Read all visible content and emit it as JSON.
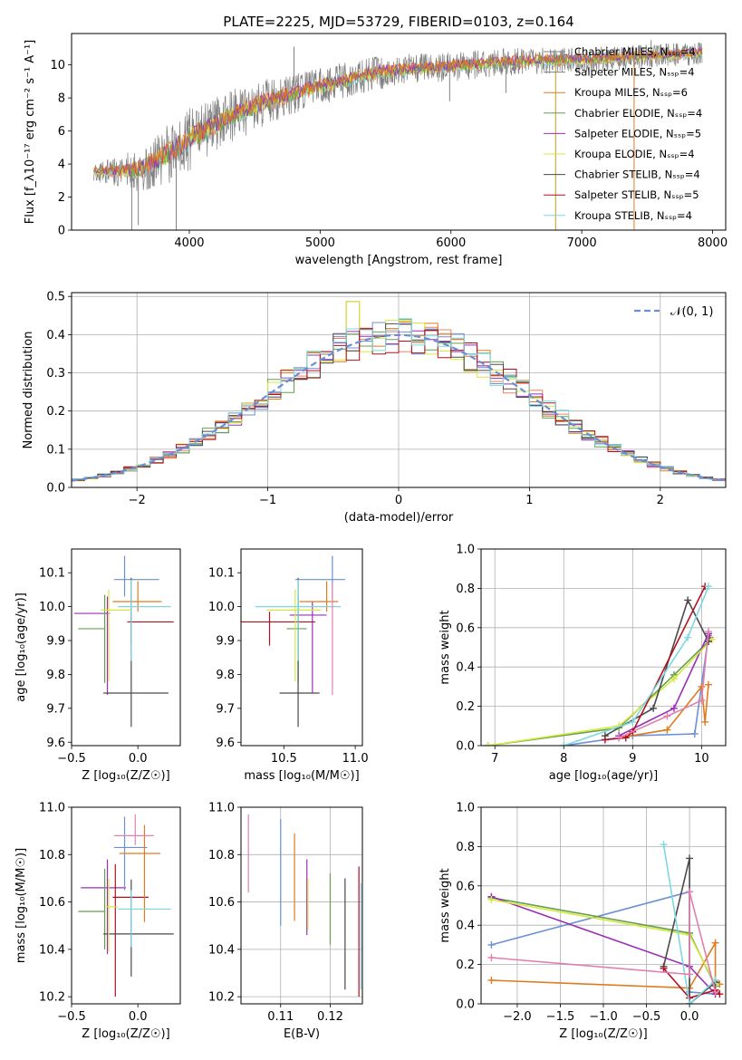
{
  "colors": [
    "#6b8fd6",
    "#f08060",
    "#e07b20",
    "#63a04f",
    "#9b30b5",
    "#d7e83c",
    "#4a4a4a",
    "#b01020",
    "#7fd7e0",
    "#e080b0",
    "#808080"
  ],
  "figure_title": "PLATE=2225, MJD=53729, FIBERID=0103, z=0.164",
  "chart_data": [
    {
      "id": "spectrum",
      "type": "line",
      "xlabel": "wavelength [Angstrom, rest frame]",
      "ylabel": "Flux [f_λ10⁻¹⁷ erg cm⁻² s⁻¹ A⁻¹]",
      "xlim": [
        3100,
        8100
      ],
      "ylim": [
        0,
        11.9
      ],
      "xticks": [
        4000,
        5000,
        6000,
        7000,
        8000
      ],
      "yticks": [
        0,
        2,
        4,
        6,
        8,
        10
      ],
      "x_range_data": [
        3270,
        7920
      ],
      "data_color": "#808080",
      "legend_position": "upper right",
      "legend": [
        "Chabrier MILES, N_SSP=4",
        "Salpeter MILES, N_SSP=4",
        "Kroupa MILES, N_SSP=6",
        "Chabrier ELODIE, N_SSP=4",
        "Salpeter ELODIE, N_SSP=5",
        "Kroupa ELODIE, N_SSP=4",
        "Chabrier STELIB, N_SSP=4",
        "Salpeter STELIB, N_SSP=5",
        "Kroupa STELIB, N_SSP=4"
      ],
      "legend_colors": [
        "#808080",
        "#808080",
        "#e07b20",
        "#63a04f",
        "#9b30b5",
        "#d7e83c",
        "#4a4a4a",
        "#b01020",
        "#7fd7e0"
      ],
      "continuum_points": [
        [
          3270,
          3.5
        ],
        [
          3600,
          3.6
        ],
        [
          3800,
          4.4
        ],
        [
          4000,
          5.5
        ],
        [
          4300,
          6.8
        ],
        [
          4600,
          7.8
        ],
        [
          5000,
          8.7
        ],
        [
          5500,
          9.6
        ],
        [
          6000,
          9.9
        ],
        [
          6500,
          10.2
        ],
        [
          7000,
          10.3
        ],
        [
          7500,
          10.5
        ],
        [
          7920,
          10.7
        ]
      ],
      "noise_amplitude": [
        [
          3270,
          0.5
        ],
        [
          3900,
          2.0
        ],
        [
          4800,
          1.2
        ],
        [
          6000,
          0.9
        ],
        [
          7920,
          0.7
        ]
      ],
      "spikes": [
        [
          3560,
          0
        ],
        [
          3610,
          0.3
        ],
        [
          3900,
          0
        ],
        [
          4800,
          11.1
        ],
        [
          5400,
          10.2
        ],
        [
          5990,
          7.8
        ],
        [
          6420,
          8.3
        ],
        [
          6800,
          0
        ],
        [
          7400,
          0
        ],
        [
          7530,
          11.5
        ]
      ]
    },
    {
      "id": "residuals",
      "type": "histogram",
      "xlabel": "(data-model)/error",
      "ylabel": "Normed distribution",
      "xlim": [
        -2.5,
        2.5
      ],
      "ylim": [
        0,
        0.51
      ],
      "xticks": [
        -2,
        -1,
        0,
        1,
        2
      ],
      "yticks": [
        0.0,
        0.1,
        0.2,
        0.3,
        0.4,
        0.5
      ],
      "grid": true,
      "bin_width": 0.1,
      "legend": [
        "𝒩(0, 1)"
      ],
      "legend_position": "upper right",
      "reference_curve": "normal(0,1)"
    },
    {
      "id": "age_vs_Z",
      "type": "errorbar",
      "xlabel": "Z [log₁₀(Z/Z☉)]",
      "ylabel": "age  [log₁₀(age/yr)]",
      "xlim": [
        -0.5,
        0.32
      ],
      "ylim": [
        9.59,
        10.17
      ],
      "xticks": [
        -0.5,
        0.0
      ],
      "yticks": [
        9.6,
        9.7,
        9.8,
        9.9,
        10.0,
        10.1
      ],
      "points": [
        {
          "x": -0.23,
          "y": 9.98,
          "xerr": [
            0.25,
            0.02
          ],
          "yerr": [
            0.24,
            0.05
          ],
          "color": "#9b30b5"
        },
        {
          "x": -0.05,
          "y": 9.955,
          "xerr": [
            0.03,
            0.32
          ],
          "yerr": [
            0.07,
            0.03
          ],
          "color": "#b01020"
        },
        {
          "x": -0.1,
          "y": 10.08,
          "xerr": [
            0.08,
            0.26
          ],
          "yerr": [
            0.05,
            0.07
          ],
          "color": "#6b8fd6"
        },
        {
          "x": 0.0,
          "y": 10.015,
          "xerr": [
            0.19,
            0.18
          ],
          "yerr": [
            0.03,
            0.06
          ],
          "color": "#e07b20"
        },
        {
          "x": -0.25,
          "y": 9.935,
          "xerr": [
            0.2,
            0.0
          ],
          "yerr": [
            0.16,
            0.1
          ],
          "color": "#63a04f"
        },
        {
          "x": -0.05,
          "y": 9.745,
          "xerr": [
            0.21,
            0.28
          ],
          "yerr": [
            0.1,
            0.34
          ],
          "color": "#4a4a4a"
        },
        {
          "x": -0.22,
          "y": 9.99,
          "xerr": [
            0.06,
            0.17
          ],
          "yerr": [
            0.21,
            0.06
          ],
          "color": "#d7e83c"
        },
        {
          "x": -0.05,
          "y": 10.0,
          "xerr": [
            0.1,
            0.3
          ],
          "yerr": [
            0.16,
            0.08
          ],
          "color": "#7fd7e0"
        }
      ]
    },
    {
      "id": "age_vs_mass",
      "type": "errorbar",
      "xlabel": "mass [log₁₀(M/M☉)]",
      "ylabel": "",
      "xlim": [
        10.2,
        11.05
      ],
      "ylim": [
        9.59,
        10.17
      ],
      "xticks": [
        10.5,
        11.0
      ],
      "yticks": [
        9.6,
        9.7,
        9.8,
        9.9,
        10.0,
        10.1
      ],
      "points": [
        {
          "x": 10.7,
          "y": 9.975,
          "xerr": [
            0.16,
            0.1
          ],
          "yerr": [
            0.23,
            0.04
          ],
          "color": "#9b30b5"
        },
        {
          "x": 10.4,
          "y": 9.955,
          "xerr": [
            0.22,
            0.32
          ],
          "yerr": [
            0.07,
            0.03
          ],
          "color": "#b01020"
        },
        {
          "x": 10.84,
          "y": 10.08,
          "xerr": [
            0.26,
            0.09
          ],
          "yerr": [
            0.06,
            0.07
          ],
          "color": "#6b8fd6"
        },
        {
          "x": 10.8,
          "y": 10.015,
          "xerr": [
            0.19,
            0.08
          ],
          "yerr": [
            0.03,
            0.06
          ],
          "color": "#e07b20"
        },
        {
          "x": 10.6,
          "y": 9.935,
          "xerr": [
            0.08,
            0.06
          ],
          "yerr": [
            0.16,
            0.1
          ],
          "color": "#63a04f"
        },
        {
          "x": 10.6,
          "y": 9.745,
          "xerr": [
            0.13,
            0.15
          ],
          "yerr": [
            0.1,
            0.34
          ],
          "color": "#4a4a4a"
        },
        {
          "x": 10.58,
          "y": 9.99,
          "xerr": [
            0.2,
            0.18
          ],
          "yerr": [
            0.21,
            0.06
          ],
          "color": "#d7e83c"
        },
        {
          "x": 10.6,
          "y": 10.0,
          "xerr": [
            0.3,
            0.3
          ],
          "yerr": [
            0.16,
            0.08
          ],
          "color": "#7fd7e0"
        },
        {
          "x": 10.84,
          "y": 9.92,
          "xerr": [
            0.0,
            0.0
          ],
          "yerr": [
            0.18,
            0.15
          ],
          "color": "#e080b0"
        }
      ]
    },
    {
      "id": "mass_weight_vs_age",
      "type": "line",
      "xlabel": "age  [log₁₀(age/yr)]",
      "ylabel": "mass weight",
      "xlim": [
        6.8,
        10.35
      ],
      "ylim": [
        0.0,
        1.0
      ],
      "xticks": [
        7,
        8,
        9,
        10
      ],
      "yticks": [
        0.0,
        0.2,
        0.4,
        0.6,
        0.8,
        1.0
      ],
      "grid": true,
      "series": [
        {
          "color": "#6b8fd6",
          "x": [
            8.0,
            9.0,
            9.9,
            10.1
          ],
          "y": [
            0.0,
            0.05,
            0.06,
            0.56
          ]
        },
        {
          "color": "#e07b20",
          "x": [
            8.8,
            9.5,
            10.0,
            10.05,
            10.1
          ],
          "y": [
            0.04,
            0.08,
            0.3,
            0.12,
            0.31
          ]
        },
        {
          "color": "#63a04f",
          "x": [
            6.9,
            8.8,
            9.6,
            10.1
          ],
          "y": [
            0.0,
            0.09,
            0.36,
            0.53
          ]
        },
        {
          "color": "#9b30b5",
          "x": [
            8.8,
            9.6,
            10.1,
            10.12
          ],
          "y": [
            0.05,
            0.19,
            0.57,
            0.55
          ]
        },
        {
          "color": "#d7e83c",
          "x": [
            6.9,
            8.8,
            9.6,
            10.15
          ],
          "y": [
            0.0,
            0.1,
            0.34,
            0.54
          ]
        },
        {
          "color": "#4a4a4a",
          "x": [
            8.6,
            9.3,
            9.8,
            10.1
          ],
          "y": [
            0.05,
            0.19,
            0.74,
            0.53
          ]
        },
        {
          "color": "#b01020",
          "x": [
            8.6,
            8.9,
            9.0,
            10.05
          ],
          "y": [
            0.03,
            0.04,
            0.07,
            0.81
          ]
        },
        {
          "color": "#7fd7e0",
          "x": [
            8.0,
            9.0,
            9.8,
            10.1
          ],
          "y": [
            0.0,
            0.12,
            0.55,
            0.81
          ]
        },
        {
          "color": "#e080b0",
          "x": [
            8.8,
            9.5,
            10.0,
            10.1
          ],
          "y": [
            0.04,
            0.15,
            0.23,
            0.58
          ]
        }
      ]
    },
    {
      "id": "mass_vs_Z",
      "type": "errorbar",
      "xlabel": "Z [log₁₀(Z/Z☉)]",
      "ylabel": "mass [log₁₀(M/M☉)]",
      "xlim": [
        -0.5,
        0.32
      ],
      "ylim": [
        10.17,
        11.0
      ],
      "xticks": [
        -0.5,
        0.0
      ],
      "yticks": [
        10.2,
        10.4,
        10.6,
        10.8,
        11.0
      ],
      "points": [
        {
          "x": -0.23,
          "y": 10.66,
          "xerr": [
            0.2,
            0.14
          ],
          "yerr": [
            0.28,
            0.12
          ],
          "color": "#9b30b5"
        },
        {
          "x": -0.17,
          "y": 10.62,
          "xerr": [
            0.02,
            0.25
          ],
          "yerr": [
            0.42,
            0.14
          ],
          "color": "#b01020"
        },
        {
          "x": -0.1,
          "y": 10.83,
          "xerr": [
            0.08,
            0.17
          ],
          "yerr": [
            0.18,
            0.13
          ],
          "color": "#6b8fd6"
        },
        {
          "x": 0.05,
          "y": 10.805,
          "xerr": [
            0.19,
            0.12
          ],
          "yerr": [
            0.29,
            0.12
          ],
          "color": "#e07b20"
        },
        {
          "x": -0.25,
          "y": 10.56,
          "xerr": [
            0.2,
            0.0
          ],
          "yerr": [
            0.16,
            0.18
          ],
          "color": "#63a04f"
        },
        {
          "x": -0.05,
          "y": 10.465,
          "xerr": [
            0.21,
            0.32
          ],
          "yerr": [
            0.18,
            0.23
          ],
          "color": "#4a4a4a"
        },
        {
          "x": -0.22,
          "y": 10.58,
          "xerr": [
            0.02,
            0.07
          ],
          "yerr": [
            0.19,
            0.12
          ],
          "color": "#d7e83c"
        },
        {
          "x": -0.05,
          "y": 10.57,
          "xerr": [
            0.1,
            0.3
          ],
          "yerr": [
            0.16,
            0.08
          ],
          "color": "#7fd7e0"
        },
        {
          "x": -0.02,
          "y": 10.88,
          "xerr": [
            0.16,
            0.14
          ],
          "yerr": [
            0.04,
            0.09
          ],
          "color": "#e080b0"
        }
      ]
    },
    {
      "id": "mass_vs_ebv",
      "type": "errorbar",
      "xlabel": "E(B-V)",
      "ylabel": "",
      "xlim": [
        0.102,
        0.1265
      ],
      "ylim": [
        10.17,
        11.0
      ],
      "xticks": [
        0.11,
        0.12
      ],
      "yticks": [
        10.2,
        10.4,
        10.6,
        10.8,
        11.0
      ],
      "grid": true,
      "points": [
        {
          "x": 0.1035,
          "y": 10.8,
          "yerr": [
            0.16,
            0.17
          ],
          "color": "#e080b0"
        },
        {
          "x": 0.11,
          "y": 10.72,
          "yerr": [
            0.22,
            0.23
          ],
          "color": "#6b8fd6"
        },
        {
          "x": 0.1128,
          "y": 10.7,
          "yerr": [
            0.18,
            0.19
          ],
          "color": "#e07b20"
        },
        {
          "x": 0.1153,
          "y": 10.66,
          "yerr": [
            0.2,
            0.12
          ],
          "color": "#9b30b5"
        },
        {
          "x": 0.1155,
          "y": 10.6,
          "yerr": [
            0.12,
            0.1
          ],
          "color": "#d7e83c"
        },
        {
          "x": 0.12,
          "y": 10.58,
          "yerr": [
            0.16,
            0.14
          ],
          "color": "#63a04f"
        },
        {
          "x": 0.123,
          "y": 10.5,
          "yerr": [
            0.27,
            0.2
          ],
          "color": "#4a4a4a"
        },
        {
          "x": 0.1258,
          "y": 10.45,
          "yerr": [
            0.25,
            0.3
          ],
          "color": "#b01020"
        },
        {
          "x": 0.1262,
          "y": 10.5,
          "yerr": [
            0.27,
            0.18
          ],
          "color": "#7fd7e0"
        }
      ]
    },
    {
      "id": "mass_weight_vs_Z",
      "type": "line",
      "xlabel": "Z [log₁₀(Z/Z☉)]",
      "ylabel": "mass weight",
      "xlim": [
        -2.42,
        0.42
      ],
      "ylim": [
        0.0,
        1.0
      ],
      "xticks": [
        -2.0,
        -1.5,
        -1.0,
        -0.5,
        0.0
      ],
      "yticks": [
        0.0,
        0.2,
        0.4,
        0.6,
        0.8,
        1.0
      ],
      "grid": true,
      "series": [
        {
          "color": "#6b8fd6",
          "x": [
            -2.3,
            0.0,
            0.0,
            0.3
          ],
          "y": [
            0.3,
            0.57,
            0.06,
            0.05
          ]
        },
        {
          "color": "#e07b20",
          "x": [
            -2.3,
            0.0,
            0.3,
            0.3,
            0.35
          ],
          "y": [
            0.12,
            0.08,
            0.31,
            0.12,
            0.1
          ]
        },
        {
          "color": "#63a04f",
          "x": [
            -2.3,
            0.0,
            0.3
          ],
          "y": [
            0.54,
            0.36,
            0.09
          ]
        },
        {
          "color": "#9b30b5",
          "x": [
            -2.3,
            0.0,
            0.3
          ],
          "y": [
            0.545,
            0.19,
            0.05
          ]
        },
        {
          "color": "#d7e83c",
          "x": [
            -2.3,
            0.0,
            0.3
          ],
          "y": [
            0.53,
            0.35,
            0.1
          ]
        },
        {
          "color": "#4a4a4a",
          "x": [
            -0.3,
            0.0,
            0.0,
            0.3
          ],
          "y": [
            0.19,
            0.74,
            0.0,
            0.11
          ]
        },
        {
          "color": "#b01020",
          "x": [
            -0.3,
            0.0,
            0.3,
            0.35
          ],
          "y": [
            0.18,
            0.03,
            0.07,
            0.05
          ]
        },
        {
          "color": "#7fd7e0",
          "x": [
            -0.3,
            0.0,
            0.3
          ],
          "y": [
            0.81,
            0.0,
            0.12
          ]
        },
        {
          "color": "#e080b0",
          "x": [
            -2.3,
            0.0,
            0.0,
            0.3
          ],
          "y": [
            0.235,
            0.15,
            0.57,
            0.06
          ]
        }
      ]
    }
  ]
}
